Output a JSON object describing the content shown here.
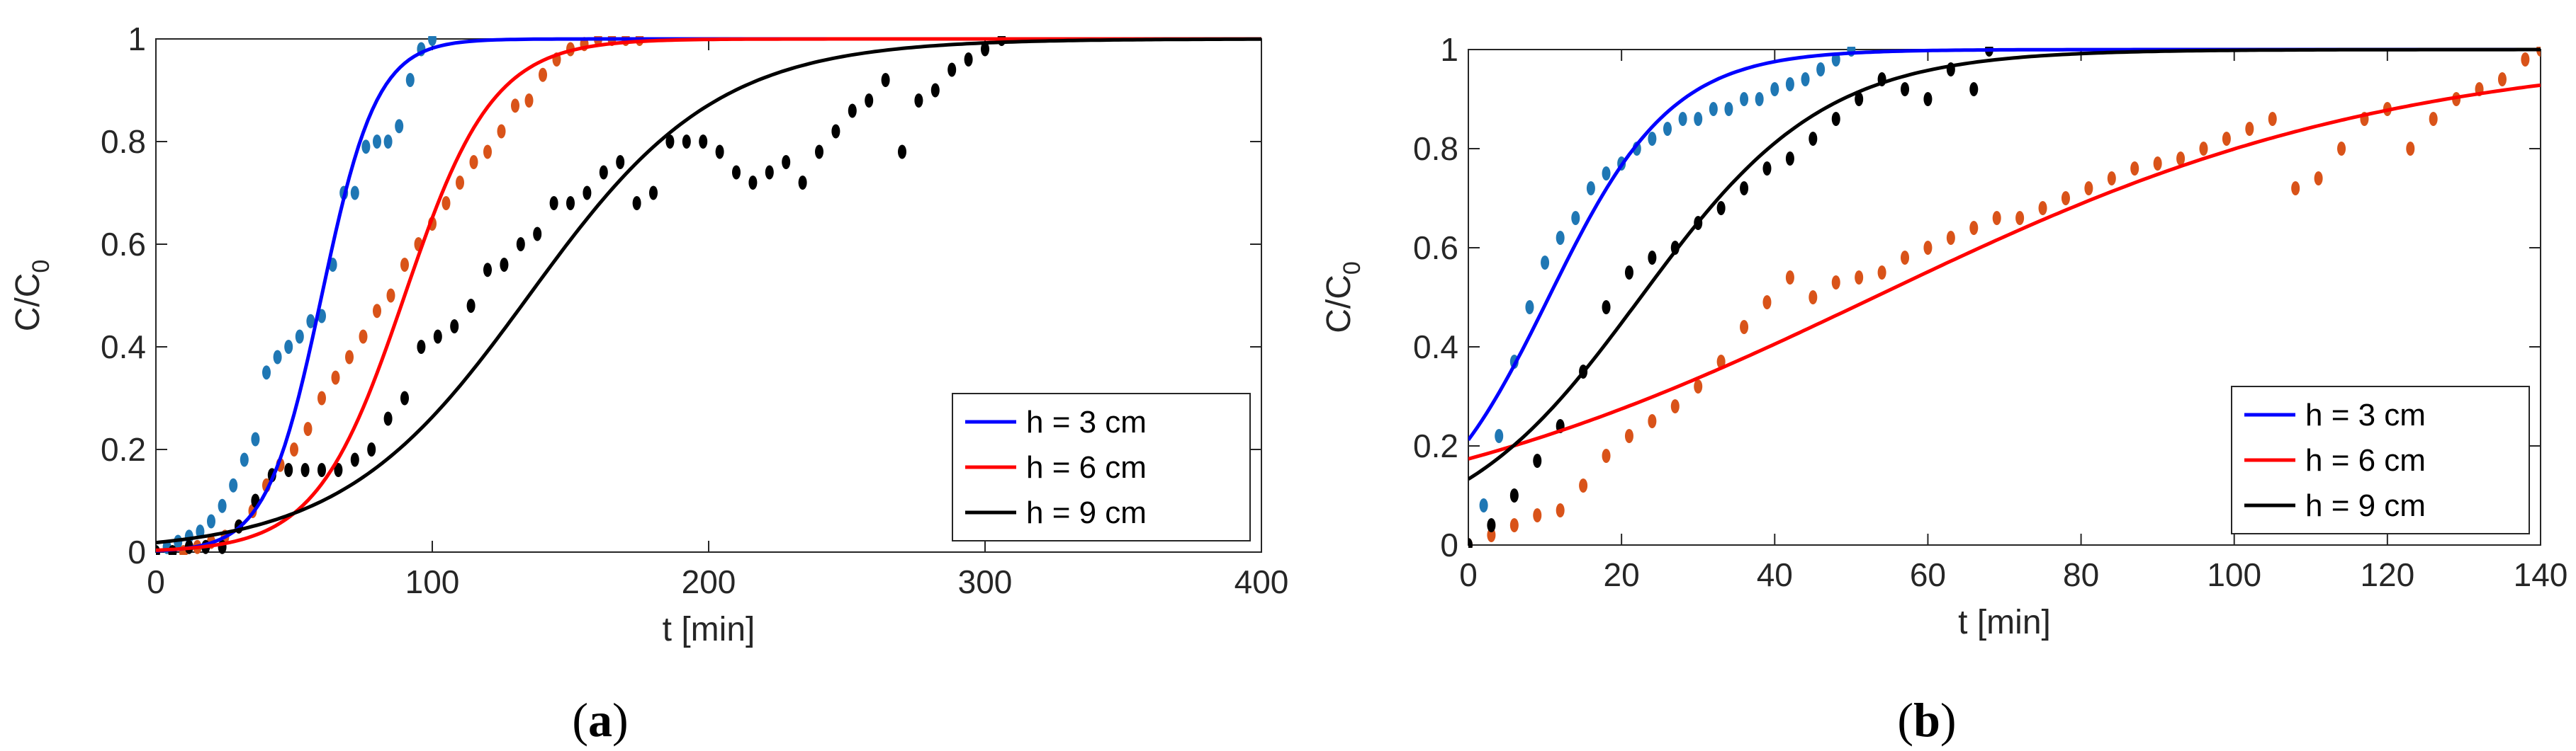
{
  "figure": {
    "panels": [
      {
        "caption_open": "(",
        "caption_letter": "a",
        "caption_close": ")"
      },
      {
        "caption_open": "(",
        "caption_letter": "b",
        "caption_close": ")"
      }
    ]
  },
  "chart_data": [
    {
      "type": "line",
      "panel": "a",
      "xlabel": "t [min]",
      "ylabel": "C/C",
      "ylabel_sub": "0",
      "xlim": [
        0,
        400
      ],
      "ylim": [
        0,
        1
      ],
      "xticks": [
        0,
        100,
        200,
        300,
        400
      ],
      "yticks": [
        0,
        0.2,
        0.4,
        0.6,
        0.8,
        1
      ],
      "ytick_labels": [
        "0",
        "0.2",
        "0.4",
        "0.6",
        "0.8",
        "1"
      ],
      "legend_position": "bottom-right",
      "series": [
        {
          "name": "h = 3 cm",
          "color": "#0000ff",
          "fit": {
            "model": "logistic",
            "t50": 60,
            "tau": 10.0
          }
        },
        {
          "name": "h = 6 cm",
          "color": "#ff0000",
          "fit": {
            "model": "logistic",
            "t50": 90,
            "tau": 16.0
          }
        },
        {
          "name": "h = 9 cm",
          "color": "#000000",
          "fit": {
            "model": "logistic",
            "t50": 135,
            "tau": 34.0
          }
        }
      ],
      "points": [
        {
          "color": "#1f77b4",
          "x": [
            0,
            4,
            8,
            12,
            16,
            20,
            24,
            28,
            32,
            36,
            40,
            44,
            48,
            52,
            56,
            60,
            64,
            68,
            72,
            76,
            80,
            84,
            88,
            92,
            96,
            100
          ],
          "y": [
            0,
            0.01,
            0.02,
            0.03,
            0.04,
            0.06,
            0.09,
            0.13,
            0.18,
            0.22,
            0.35,
            0.38,
            0.4,
            0.42,
            0.45,
            0.46,
            0.56,
            0.7,
            0.7,
            0.79,
            0.8,
            0.8,
            0.83,
            0.92,
            0.98,
            1.0
          ]
        },
        {
          "color": "#d95319",
          "x": [
            10,
            15,
            20,
            25,
            30,
            35,
            40,
            45,
            50,
            55,
            60,
            65,
            70,
            75,
            80,
            85,
            90,
            95,
            100,
            105,
            110,
            115,
            120,
            125,
            130,
            135,
            140,
            145,
            150,
            155,
            160,
            165,
            170,
            175
          ],
          "y": [
            0,
            0.01,
            0.02,
            0.03,
            0.05,
            0.08,
            0.13,
            0.17,
            0.2,
            0.24,
            0.3,
            0.34,
            0.38,
            0.42,
            0.47,
            0.5,
            0.56,
            0.6,
            0.64,
            0.68,
            0.72,
            0.76,
            0.78,
            0.82,
            0.87,
            0.88,
            0.93,
            0.96,
            0.98,
            0.99,
            1.0,
            1.0,
            1.0,
            1.0
          ]
        },
        {
          "color": "#000000",
          "x": [
            0,
            6,
            12,
            18,
            24,
            30,
            36,
            42,
            48,
            54,
            60,
            66,
            72,
            78,
            84,
            90,
            96,
            102,
            108,
            114,
            120,
            126,
            132,
            138,
            144,
            150,
            156,
            162,
            168,
            174,
            180,
            186,
            192,
            198,
            204,
            210,
            216,
            222,
            228,
            234,
            240,
            246,
            252,
            258,
            264,
            270,
            276,
            282,
            288,
            294,
            300,
            306
          ],
          "y": [
            0,
            0.0,
            0.01,
            0.01,
            0.01,
            0.05,
            0.1,
            0.15,
            0.16,
            0.16,
            0.16,
            0.16,
            0.18,
            0.2,
            0.26,
            0.3,
            0.4,
            0.42,
            0.44,
            0.48,
            0.55,
            0.56,
            0.6,
            0.62,
            0.68,
            0.68,
            0.7,
            0.74,
            0.76,
            0.68,
            0.7,
            0.8,
            0.8,
            0.8,
            0.78,
            0.74,
            0.72,
            0.74,
            0.76,
            0.72,
            0.78,
            0.82,
            0.86,
            0.88,
            0.92,
            0.78,
            0.88,
            0.9,
            0.94,
            0.96,
            0.98,
            1.0
          ]
        }
      ]
    },
    {
      "type": "line",
      "panel": "b",
      "xlabel": "t [min]",
      "ylabel": "C/C",
      "ylabel_sub": "0",
      "xlim": [
        0,
        140
      ],
      "ylim": [
        0,
        1
      ],
      "xticks": [
        0,
        20,
        40,
        60,
        80,
        100,
        120,
        140
      ],
      "yticks": [
        0,
        0.2,
        0.4,
        0.6,
        0.8,
        1
      ],
      "ytick_labels": [
        "0",
        "0.2",
        "0.4",
        "0.6",
        "0.8",
        "1"
      ],
      "legend_position": "bottom-right",
      "series": [
        {
          "name": "h = 3 cm",
          "color": "#0000ff",
          "fit": {
            "model": "logistic",
            "t50": 10.5,
            "tau": 8.0
          }
        },
        {
          "name": "h = 6 cm",
          "color": "#ff0000",
          "fit": {
            "model": "logistic",
            "t50": 53,
            "tau": 34.0
          }
        },
        {
          "name": "h = 9 cm",
          "color": "#000000",
          "fit": {
            "model": "logistic",
            "t50": 22.5,
            "tau": 12.0
          }
        }
      ],
      "points": [
        {
          "color": "#1f77b4",
          "x": [
            2,
            4,
            6,
            8,
            10,
            12,
            14,
            16,
            18,
            20,
            22,
            24,
            26,
            28,
            30,
            32,
            34,
            36,
            38,
            40,
            42,
            44,
            46,
            48,
            50
          ],
          "y": [
            0.08,
            0.22,
            0.37,
            0.48,
            0.57,
            0.62,
            0.66,
            0.72,
            0.75,
            0.77,
            0.8,
            0.82,
            0.84,
            0.86,
            0.86,
            0.88,
            0.88,
            0.9,
            0.9,
            0.92,
            0.93,
            0.94,
            0.96,
            0.98,
            1.0
          ]
        },
        {
          "color": "#d95319",
          "x": [
            0,
            3,
            6,
            9,
            12,
            15,
            18,
            21,
            24,
            27,
            30,
            33,
            36,
            39,
            42,
            45,
            48,
            51,
            54,
            57,
            60,
            63,
            66,
            69,
            72,
            75,
            78,
            81,
            84,
            87,
            90,
            93,
            96,
            99,
            102,
            105,
            108,
            111,
            114,
            117,
            120,
            123,
            126,
            129,
            132,
            135,
            138,
            140
          ],
          "y": [
            0,
            0.02,
            0.04,
            0.06,
            0.07,
            0.12,
            0.18,
            0.22,
            0.25,
            0.28,
            0.32,
            0.37,
            0.44,
            0.49,
            0.54,
            0.5,
            0.53,
            0.54,
            0.55,
            0.58,
            0.6,
            0.62,
            0.64,
            0.66,
            0.66,
            0.68,
            0.7,
            0.72,
            0.74,
            0.76,
            0.77,
            0.78,
            0.8,
            0.82,
            0.84,
            0.86,
            0.72,
            0.74,
            0.8,
            0.86,
            0.88,
            0.8,
            0.86,
            0.9,
            0.92,
            0.94,
            0.98,
            1.0
          ]
        },
        {
          "color": "#000000",
          "x": [
            0,
            3,
            6,
            9,
            12,
            15,
            18,
            21,
            24,
            27,
            30,
            33,
            36,
            39,
            42,
            45,
            48,
            51,
            54,
            57,
            60,
            63,
            66,
            68
          ],
          "y": [
            0,
            0.04,
            0.1,
            0.17,
            0.24,
            0.35,
            0.48,
            0.55,
            0.58,
            0.6,
            0.65,
            0.68,
            0.72,
            0.76,
            0.78,
            0.82,
            0.86,
            0.9,
            0.94,
            0.92,
            0.9,
            0.96,
            0.92,
            1.0
          ]
        }
      ]
    }
  ]
}
